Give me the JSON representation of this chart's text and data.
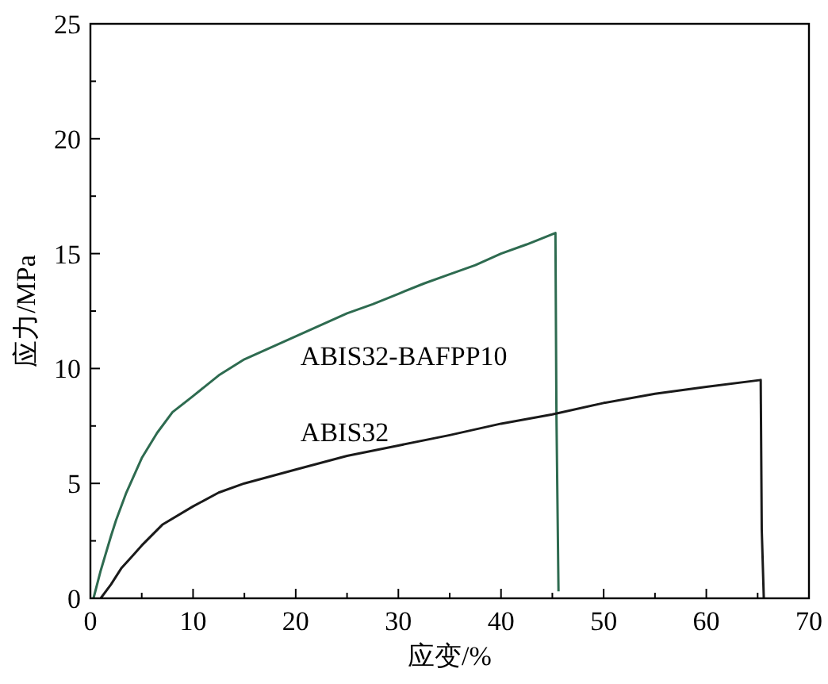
{
  "chart_data": {
    "type": "line",
    "xlabel": "应变/%",
    "ylabel": "应力/MPa",
    "xlim": [
      0,
      70
    ],
    "ylim": [
      0,
      25
    ],
    "xticks": [
      0,
      {
        "value": 5,
        "label": null
      },
      10,
      {
        "value": 15,
        "label": null
      },
      20,
      {
        "value": 25,
        "label": null
      },
      30,
      {
        "value": 35,
        "label": null
      },
      40,
      {
        "value": 45,
        "label": null
      },
      50,
      {
        "value": 55,
        "label": null
      },
      60,
      {
        "value": 65,
        "label": null
      },
      70
    ],
    "yticks": [
      0,
      {
        "value": 2.5,
        "label": null
      },
      5,
      {
        "value": 7.5,
        "label": null
      },
      10,
      {
        "value": 12.5,
        "label": null
      },
      15,
      {
        "value": 17.5,
        "label": null
      },
      20,
      {
        "value": 22.5,
        "label": null
      },
      25
    ],
    "grid": false,
    "legend": false,
    "marker": "none",
    "line_style": "solid",
    "series": [
      {
        "name": "ABIS32-BAFPP10",
        "color": "#2e6b50",
        "x": [
          0.3,
          1,
          2,
          2.5,
          3.5,
          5,
          6.5,
          8,
          10,
          12.5,
          15,
          17.5,
          20,
          22.5,
          25,
          27.5,
          30,
          32.5,
          35,
          37.5,
          40,
          42.5,
          45.3,
          45.4,
          45.6
        ],
        "values": [
          0,
          1.2,
          2.7,
          3.4,
          4.6,
          6.1,
          7.2,
          8.1,
          8.8,
          9.7,
          10.4,
          10.9,
          11.4,
          11.9,
          12.4,
          12.8,
          13.25,
          13.7,
          14.1,
          14.5,
          15,
          15.4,
          15.9,
          8,
          0.3
        ]
      },
      {
        "name": "ABIS32",
        "color": "#1a1a1a",
        "x": [
          1,
          2,
          3,
          4,
          5,
          7,
          10,
          12.5,
          15,
          17.5,
          20,
          25,
          30,
          35,
          40,
          45,
          50,
          55,
          60,
          65.3,
          65.4,
          65.6
        ],
        "values": [
          0,
          0.6,
          1.3,
          1.8,
          2.3,
          3.2,
          4.0,
          4.6,
          5.0,
          5.3,
          5.6,
          6.2,
          6.65,
          7.1,
          7.6,
          8.0,
          8.5,
          8.9,
          9.2,
          9.5,
          3,
          0
        ]
      }
    ]
  }
}
